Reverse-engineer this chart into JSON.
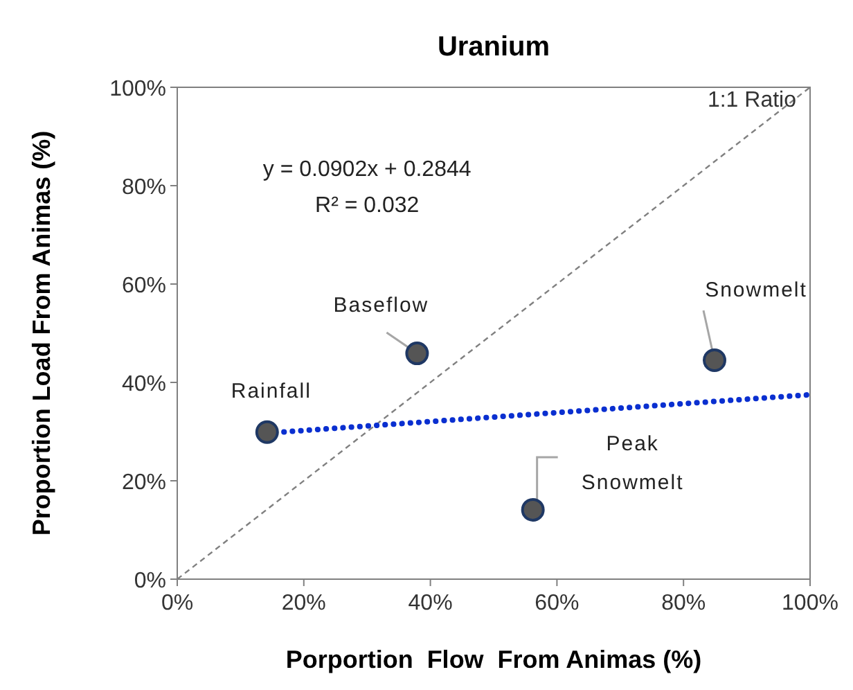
{
  "chart_data": {
    "type": "scatter",
    "title": "Uranium",
    "xlabel": "Porportion  Flow  From Animas (%)",
    "ylabel": "Proportion Load From Animas (%)",
    "xlim": [
      0,
      100
    ],
    "ylim": [
      0,
      100
    ],
    "xticks": [
      {
        "value": 0,
        "label": "0%"
      },
      {
        "value": 20,
        "label": "20%"
      },
      {
        "value": 40,
        "label": "40%"
      },
      {
        "value": 60,
        "label": "60%"
      },
      {
        "value": 80,
        "label": "80%"
      },
      {
        "value": 100,
        "label": "100%"
      }
    ],
    "yticks": [
      {
        "value": 0,
        "label": "0%"
      },
      {
        "value": 20,
        "label": "20%"
      },
      {
        "value": 40,
        "label": "40%"
      },
      {
        "value": 60,
        "label": "60%"
      },
      {
        "value": 80,
        "label": "80%"
      },
      {
        "value": 100,
        "label": "100%"
      }
    ],
    "grid": false,
    "marker": "circle",
    "series": [
      {
        "type": "line",
        "color": "#808080",
        "line_style": "dashed",
        "marker": "none",
        "x": [
          0,
          100
        ],
        "values": [
          0,
          100
        ]
      },
      {
        "type": "line",
        "color": "#0a2fd0",
        "line_style": "dotted",
        "marker": "none",
        "x": [
          14.2,
          100
        ],
        "values": [
          29.7,
          37.5
        ]
      },
      {
        "type": "scatter",
        "color": "#555555",
        "x": [
          14.2,
          37.9,
          84.9,
          56.2
        ],
        "values": [
          29.9,
          45.9,
          44.5,
          14.1
        ]
      }
    ],
    "annotations": [
      {
        "text": "Rainfall",
        "x": 14.2,
        "y": 29.9
      },
      {
        "text": "Baseflow",
        "x": 37.9,
        "y": 45.9
      },
      {
        "text": "Snowmelt",
        "x": 84.9,
        "y": 44.5
      },
      {
        "text": "Peak\nSnowmelt",
        "x": 56.2,
        "y": 14.1
      },
      {
        "text": "1:1 Ratio",
        "x": 100,
        "y": 100
      },
      "y = 0.0902x + 0.2844\nR² = 0.032"
    ]
  }
}
